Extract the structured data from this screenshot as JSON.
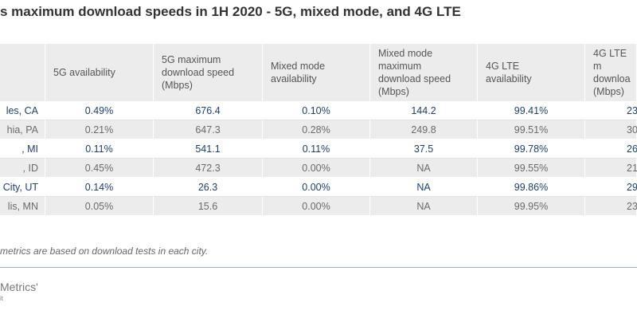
{
  "header": {
    "title": "s maximum download speeds in 1H 2020 - 5G, mixed mode, and 4G LTE"
  },
  "table": {
    "columns": [
      "",
      "5G availability",
      "5G maximum\ndownload speed\n(Mbps)",
      "Mixed mode\navailability",
      "Mixed mode\nmaximum\ndownload speed\n(Mbps)",
      "4G LTE\navailability",
      "4G LTE m\ndownloa\n(Mbps)"
    ],
    "rows": [
      [
        "les, CA",
        "0.49%",
        "676.4",
        "0.10%",
        "144.2",
        "99.41%",
        "23"
      ],
      [
        "hia, PA",
        "0.21%",
        "647.3",
        "0.28%",
        "249.8",
        "99.51%",
        "30"
      ],
      [
        ", MI",
        "0.11%",
        "541.1",
        "0.11%",
        "37.5",
        "99.78%",
        "26"
      ],
      [
        ", ID",
        "0.45%",
        "472.3",
        "0.00%",
        "NA",
        "99.55%",
        "21"
      ],
      [
        "City, UT",
        "0.14%",
        "26.3",
        "0.00%",
        "NA",
        "99.86%",
        "29"
      ],
      [
        "lis, MN",
        "0.05%",
        "15.6",
        "0.00%",
        "NA",
        "99.95%",
        "23"
      ]
    ]
  },
  "footnote": "metrics are based on download tests in each city.",
  "logo": {
    "name": "Metrics'",
    "sub": "it"
  }
}
